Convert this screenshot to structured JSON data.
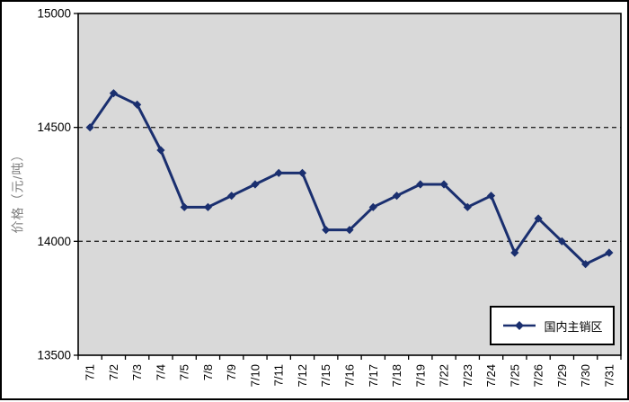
{
  "chart_data": {
    "type": "line",
    "ylabel": "价格（元/吨）",
    "categories": [
      "7/1",
      "7/2",
      "7/3",
      "7/4",
      "7/5",
      "7/8",
      "7/9",
      "7/10",
      "7/11",
      "7/12",
      "7/15",
      "7/16",
      "7/17",
      "7/18",
      "7/19",
      "7/22",
      "7/23",
      "7/24",
      "7/25",
      "7/26",
      "7/29",
      "7/30",
      "7/31"
    ],
    "series": [
      {
        "name": "国内主销区",
        "values": [
          14500,
          14650,
          14600,
          14400,
          14150,
          14150,
          14200,
          14250,
          14300,
          14300,
          14050,
          14050,
          14150,
          14200,
          14250,
          14250,
          14150,
          14200,
          13950,
          14100,
          14000,
          13900,
          13950
        ]
      }
    ],
    "ylim": [
      13500,
      15000
    ],
    "yticks": [
      "15000",
      "14500",
      "14000",
      "13500"
    ],
    "ytick_values": [
      15000,
      14500,
      14000,
      13500
    ],
    "gridline_values": [
      14500,
      14000
    ],
    "grid_style": "dashed",
    "legend_position": "inside-bottom-right",
    "marker": "diamond",
    "colors": {
      "series_line": "#1a2f6f",
      "plot_background": "#d9d9d9",
      "figure_background": "#ffffff",
      "frame": "#000000",
      "gridline": "#262626",
      "tick_label": "#000000",
      "ylabel_text": "#7f7f7f"
    }
  },
  "legend": {
    "label": "国内主销区"
  }
}
